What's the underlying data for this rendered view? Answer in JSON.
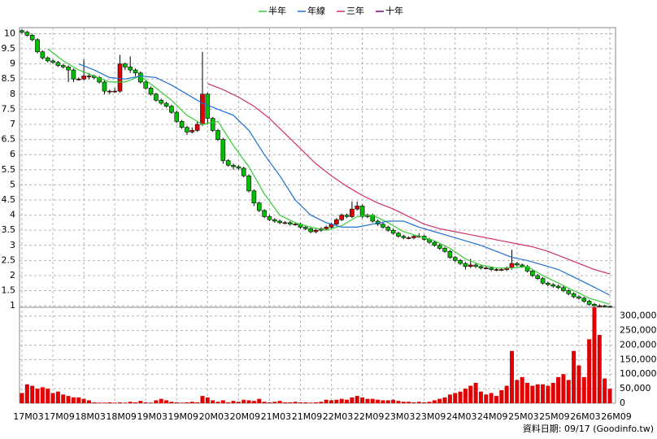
{
  "chart_data": {
    "type": "candlestick",
    "legend": "top",
    "grid": true,
    "footer": "資料日期: 09/17 (Goodinfo.tw)",
    "categories": [
      "17M03",
      null,
      null,
      null,
      null,
      null,
      "17M09",
      null,
      null,
      null,
      null,
      null,
      "18M03",
      null,
      null,
      null,
      null,
      null,
      "18M09",
      null,
      null,
      null,
      null,
      null,
      "19M03",
      null,
      null,
      null,
      null,
      null,
      "19M09",
      null,
      null,
      null,
      null,
      null,
      "20M03",
      null,
      null,
      null,
      null,
      null,
      "20M09",
      null,
      null,
      null,
      null,
      null,
      "21M03",
      null,
      null,
      null,
      null,
      null,
      "21M09",
      null,
      null,
      null,
      null,
      null,
      "22M03",
      null,
      null,
      null,
      null,
      null,
      "22M09",
      null,
      null,
      null,
      null,
      null,
      "23M03",
      null,
      null,
      null,
      null,
      null,
      "23M09",
      null,
      null,
      null,
      null,
      null,
      "24M03",
      null,
      null,
      null,
      null,
      null,
      "24M09",
      null,
      null,
      null,
      null,
      null,
      "25M03",
      null,
      null,
      null,
      null,
      null,
      "25M09",
      null,
      null,
      null,
      null,
      null,
      "26M03",
      null,
      null,
      null,
      null,
      null,
      "26M09"
    ],
    "up_color": "#e00000",
    "down_color": "#00c000",
    "open": [
      10.1,
      10.05,
      9.95,
      9.8,
      9.4,
      9.2,
      9.1,
      9.05,
      8.95,
      8.9,
      8.8,
      8.5,
      8.5,
      8.6,
      8.6,
      8.55,
      8.4,
      8.1,
      8.1,
      8.1,
      9.0,
      8.9,
      8.8,
      8.7,
      8.4,
      8.2,
      8.0,
      7.8,
      7.7,
      7.6,
      7.4,
      7.1,
      6.9,
      6.75,
      6.8,
      7.0,
      8.0,
      7.2,
      6.8,
      6.5,
      5.8,
      5.65,
      5.6,
      5.55,
      5.3,
      4.8,
      4.4,
      4.15,
      3.95,
      3.85,
      3.8,
      3.75,
      3.75,
      3.7,
      3.7,
      3.6,
      3.55,
      3.45,
      3.5,
      3.55,
      3.6,
      3.7,
      3.85,
      4.0,
      3.95,
      4.2,
      4.3,
      3.95,
      4.0,
      3.8,
      3.7,
      3.6,
      3.5,
      3.4,
      3.3,
      3.25,
      3.25,
      3.3,
      3.3,
      3.2,
      3.1,
      3.0,
      2.9,
      2.8,
      2.6,
      2.5,
      2.4,
      2.3,
      2.35,
      2.3,
      2.25,
      2.25,
      2.2,
      2.2,
      2.2,
      2.25,
      2.4,
      2.35,
      2.3,
      2.15,
      2.0,
      1.9,
      1.75,
      1.7,
      1.65,
      1.6,
      1.5,
      1.4,
      1.3,
      1.25,
      1.15,
      1.05,
      1.0,
      1.0,
      0.98
    ],
    "high": [
      10.15,
      10.1,
      10.0,
      9.85,
      9.45,
      9.25,
      9.15,
      9.1,
      9.0,
      8.95,
      8.85,
      8.55,
      9.15,
      8.7,
      8.65,
      8.6,
      8.45,
      8.15,
      8.2,
      9.3,
      9.05,
      9.25,
      8.85,
      8.75,
      8.45,
      8.25,
      8.05,
      7.85,
      7.75,
      7.65,
      7.45,
      7.15,
      6.95,
      6.9,
      7.1,
      9.4,
      8.05,
      7.25,
      6.85,
      6.55,
      5.85,
      5.7,
      5.65,
      5.6,
      5.35,
      4.85,
      4.45,
      4.2,
      4.0,
      3.9,
      3.85,
      3.8,
      3.8,
      3.75,
      3.75,
      3.65,
      3.6,
      3.55,
      3.6,
      3.65,
      3.75,
      3.9,
      4.05,
      4.05,
      4.45,
      4.45,
      4.35,
      4.05,
      4.05,
      3.85,
      3.75,
      3.65,
      3.55,
      3.45,
      3.35,
      3.3,
      3.35,
      3.4,
      3.35,
      3.25,
      3.15,
      3.05,
      2.95,
      2.85,
      2.65,
      2.55,
      2.45,
      2.55,
      2.4,
      2.35,
      2.3,
      2.3,
      2.25,
      2.25,
      2.3,
      2.85,
      2.45,
      2.4,
      2.35,
      2.2,
      2.05,
      1.95,
      1.8,
      1.75,
      1.7,
      1.65,
      1.55,
      1.45,
      1.35,
      1.3,
      1.2,
      1.1,
      1.05,
      1.03,
      1.0
    ],
    "low": [
      10.0,
      9.9,
      9.75,
      9.35,
      9.15,
      9.05,
      9.0,
      8.9,
      8.85,
      8.4,
      8.4,
      8.45,
      8.45,
      8.5,
      8.5,
      8.35,
      8.0,
      8.0,
      8.05,
      8.05,
      8.8,
      8.7,
      8.6,
      8.35,
      8.15,
      7.95,
      7.75,
      7.65,
      7.55,
      7.35,
      7.05,
      6.85,
      6.65,
      6.7,
      6.75,
      6.95,
      7.0,
      6.75,
      6.45,
      5.7,
      5.6,
      5.5,
      5.5,
      5.25,
      4.75,
      4.3,
      4.1,
      3.9,
      3.8,
      3.75,
      3.7,
      3.7,
      3.65,
      3.65,
      3.55,
      3.5,
      3.4,
      3.4,
      3.45,
      3.5,
      3.55,
      3.65,
      3.8,
      3.9,
      3.9,
      4.15,
      3.9,
      3.9,
      3.75,
      3.65,
      3.55,
      3.45,
      3.35,
      3.25,
      3.2,
      3.2,
      3.2,
      3.25,
      3.15,
      3.05,
      2.95,
      2.85,
      2.75,
      2.55,
      2.45,
      2.35,
      2.2,
      2.25,
      2.25,
      2.2,
      2.2,
      2.15,
      2.15,
      2.15,
      2.15,
      2.2,
      2.3,
      2.25,
      2.1,
      1.95,
      1.85,
      1.7,
      1.65,
      1.6,
      1.55,
      1.45,
      1.35,
      1.25,
      1.2,
      1.1,
      1.0,
      0.97,
      0.97,
      0.96,
      0.95
    ],
    "close": [
      10.05,
      9.95,
      9.8,
      9.4,
      9.2,
      9.1,
      9.05,
      8.95,
      8.9,
      8.8,
      8.5,
      8.5,
      8.6,
      8.6,
      8.55,
      8.4,
      8.1,
      8.1,
      8.1,
      9.0,
      8.9,
      8.8,
      8.7,
      8.4,
      8.2,
      8.0,
      7.8,
      7.7,
      7.6,
      7.4,
      7.1,
      6.9,
      6.75,
      6.8,
      7.0,
      8.0,
      7.2,
      6.8,
      6.5,
      5.8,
      5.65,
      5.6,
      5.55,
      5.3,
      4.8,
      4.4,
      4.15,
      3.95,
      3.85,
      3.8,
      3.75,
      3.75,
      3.7,
      3.7,
      3.6,
      3.55,
      3.45,
      3.5,
      3.55,
      3.6,
      3.7,
      3.85,
      4.0,
      3.95,
      4.2,
      4.3,
      3.95,
      4.0,
      3.8,
      3.7,
      3.6,
      3.5,
      3.4,
      3.3,
      3.25,
      3.25,
      3.3,
      3.3,
      3.2,
      3.1,
      3.0,
      2.9,
      2.8,
      2.6,
      2.5,
      2.4,
      2.3,
      2.35,
      2.3,
      2.25,
      2.25,
      2.2,
      2.2,
      2.2,
      2.25,
      2.4,
      2.35,
      2.3,
      2.15,
      2.0,
      1.9,
      1.75,
      1.7,
      1.65,
      1.6,
      1.5,
      1.4,
      1.3,
      1.25,
      1.15,
      1.05,
      1.0,
      1.0,
      0.98,
      0.97
    ],
    "volume": [
      35000,
      65000,
      60000,
      50000,
      55000,
      50000,
      35000,
      40000,
      30000,
      25000,
      20000,
      20000,
      15000,
      10000,
      3000,
      2000,
      2000,
      3000,
      2000,
      3000,
      2000,
      5000,
      3000,
      8000,
      3000,
      2000,
      10000,
      15000,
      10000,
      5000,
      3000,
      2000,
      3000,
      5000,
      3000,
      25000,
      20000,
      10000,
      5000,
      10000,
      3000,
      8000,
      5000,
      12000,
      10000,
      8000,
      15000,
      5000,
      3000,
      5000,
      8000,
      3000,
      3000,
      5000,
      3000,
      3000,
      2000,
      3000,
      5000,
      12000,
      10000,
      12000,
      15000,
      12000,
      20000,
      25000,
      20000,
      15000,
      15000,
      12000,
      10000,
      10000,
      12000,
      8000,
      5000,
      5000,
      3000,
      5000,
      3000,
      5000,
      10000,
      15000,
      20000,
      30000,
      35000,
      40000,
      50000,
      60000,
      70000,
      40000,
      30000,
      35000,
      25000,
      45000,
      60000,
      180000,
      80000,
      90000,
      70000,
      60000,
      65000,
      65000,
      60000,
      70000,
      90000,
      100000,
      80000,
      180000,
      130000,
      90000,
      220000,
      330000,
      235000,
      85000,
      50000
    ],
    "volume_color": "#e00000",
    "ylim": [
      0.95,
      10.2
    ],
    "yticks": [
      1,
      1.5,
      2,
      2.5,
      3,
      3.5,
      4,
      4.5,
      5,
      5.5,
      6,
      6.5,
      7,
      7.5,
      8,
      8.5,
      9,
      9.5,
      10
    ],
    "y2lim": [
      0,
      330000
    ],
    "y2ticks": [
      0,
      {
        "value": 50000,
        "label": "50,000"
      },
      {
        "value": 100000,
        "label": "100,000"
      },
      {
        "value": 150000,
        "label": "150,000"
      },
      {
        "value": 200000,
        "label": "200,000"
      },
      {
        "value": 250000,
        "label": "250,000"
      },
      {
        "value": 300000,
        "label": "300,000"
      }
    ],
    "series": [
      {
        "name": "半年",
        "color": "#33cc33",
        "x": [
          5,
          8,
          11,
          14,
          17,
          20,
          23,
          26,
          29,
          32,
          35,
          38,
          41,
          44,
          47,
          50,
          53,
          56,
          59,
          62,
          65,
          68,
          71,
          74,
          77,
          80,
          83,
          86,
          89,
          92,
          95,
          98,
          101,
          104,
          107,
          110,
          114
        ],
        "values": [
          9.5,
          9.1,
          8.8,
          8.6,
          8.4,
          8.4,
          8.6,
          8.2,
          7.8,
          7.3,
          7.0,
          7.1,
          6.3,
          5.6,
          4.7,
          4.0,
          3.75,
          3.6,
          3.5,
          3.65,
          3.95,
          4.0,
          3.75,
          3.45,
          3.3,
          3.15,
          2.9,
          2.55,
          2.35,
          2.25,
          2.25,
          2.3,
          2.0,
          1.75,
          1.5,
          1.25,
          1.05
        ]
      },
      {
        "name": "年線",
        "color": "#1f6fd0",
        "x": [
          11,
          14,
          17,
          20,
          23,
          26,
          29,
          32,
          35,
          38,
          41,
          44,
          47,
          50,
          53,
          56,
          59,
          62,
          65,
          68,
          71,
          74,
          77,
          80,
          83,
          86,
          89,
          92,
          95,
          98,
          101,
          104,
          107,
          110,
          114
        ],
        "values": [
          9.0,
          8.8,
          8.55,
          8.5,
          8.6,
          8.55,
          8.3,
          8.0,
          7.7,
          7.5,
          7.3,
          6.8,
          6.0,
          5.3,
          4.5,
          4.0,
          3.75,
          3.6,
          3.6,
          3.7,
          3.8,
          3.8,
          3.6,
          3.45,
          3.3,
          3.15,
          3.0,
          2.8,
          2.6,
          2.5,
          2.35,
          2.2,
          1.95,
          1.7,
          1.35
        ]
      },
      {
        "name": "三年",
        "color": "#d0306a",
        "x": [
          36,
          39,
          42,
          45,
          48,
          51,
          54,
          57,
          60,
          63,
          66,
          69,
          72,
          75,
          78,
          81,
          84,
          87,
          90,
          93,
          96,
          99,
          102,
          105,
          108,
          111,
          114
        ],
        "values": [
          8.35,
          8.15,
          7.9,
          7.6,
          7.2,
          6.7,
          6.2,
          5.7,
          5.3,
          4.95,
          4.65,
          4.4,
          4.2,
          3.95,
          3.7,
          3.55,
          3.45,
          3.35,
          3.25,
          3.15,
          3.05,
          2.95,
          2.8,
          2.6,
          2.4,
          2.2,
          2.05
        ]
      },
      {
        "name": "十年",
        "color": "#800080",
        "x": [],
        "values": []
      }
    ]
  }
}
